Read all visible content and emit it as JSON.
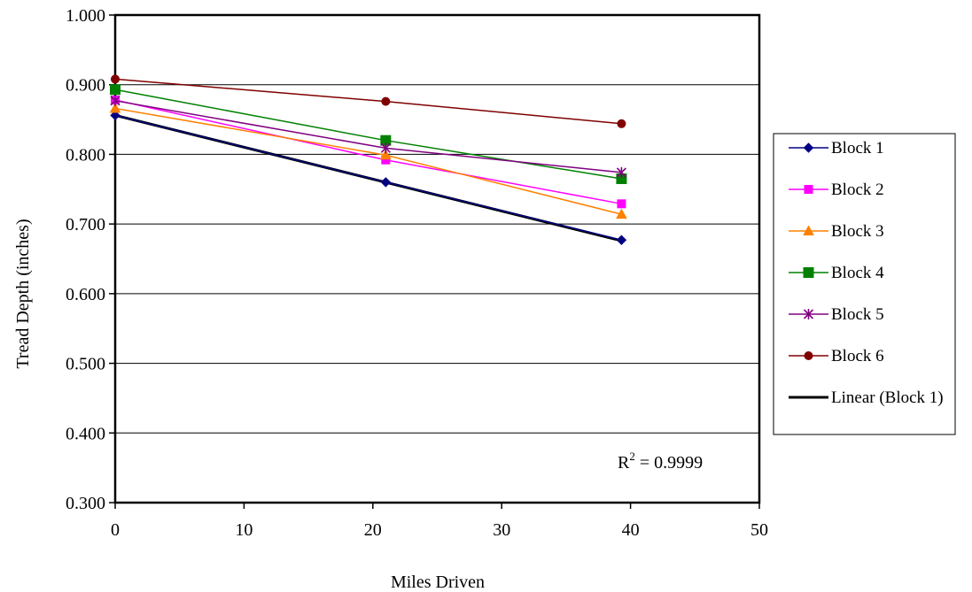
{
  "chart_data": {
    "type": "line",
    "title": "",
    "xlabel": "Miles Driven",
    "ylabel": "Tread Depth (inches)",
    "xlim": [
      0,
      50
    ],
    "ylim": [
      0.3,
      1.0
    ],
    "x_ticks": [
      "0",
      "10",
      "20",
      "30",
      "40",
      "50"
    ],
    "y_ticks": [
      "0.300",
      "0.400",
      "0.500",
      "0.600",
      "0.700",
      "0.800",
      "0.900",
      "1.000"
    ],
    "grid": "horizontal",
    "legend_position": "right",
    "x": [
      0,
      21,
      39.3
    ],
    "series": [
      {
        "name": "Block 1",
        "values": [
          0.856,
          0.76,
          0.677
        ],
        "color": "#000080",
        "marker": "diamond"
      },
      {
        "name": "Block 2",
        "values": [
          0.878,
          0.792,
          0.729
        ],
        "color": "#ff00ff",
        "marker": "square"
      },
      {
        "name": "Block 3",
        "values": [
          0.866,
          0.799,
          0.714
        ],
        "color": "#ff8000",
        "marker": "triangle"
      },
      {
        "name": "Block 4",
        "values": [
          0.893,
          0.82,
          0.765
        ],
        "color": "#008000",
        "marker": "square-large"
      },
      {
        "name": "Block 5",
        "values": [
          0.877,
          0.809,
          0.774
        ],
        "color": "#800080",
        "marker": "asterisk"
      },
      {
        "name": "Block 6",
        "values": [
          0.908,
          0.876,
          0.844
        ],
        "color": "#800000",
        "marker": "circle"
      }
    ],
    "trendline": {
      "name": "Linear (Block 1)",
      "x": [
        0,
        39.3
      ],
      "values": [
        0.856,
        0.676
      ],
      "color": "#000000"
    },
    "annotation": {
      "base": "R",
      "superscript": "2",
      "rest": " = 0.9999"
    }
  }
}
